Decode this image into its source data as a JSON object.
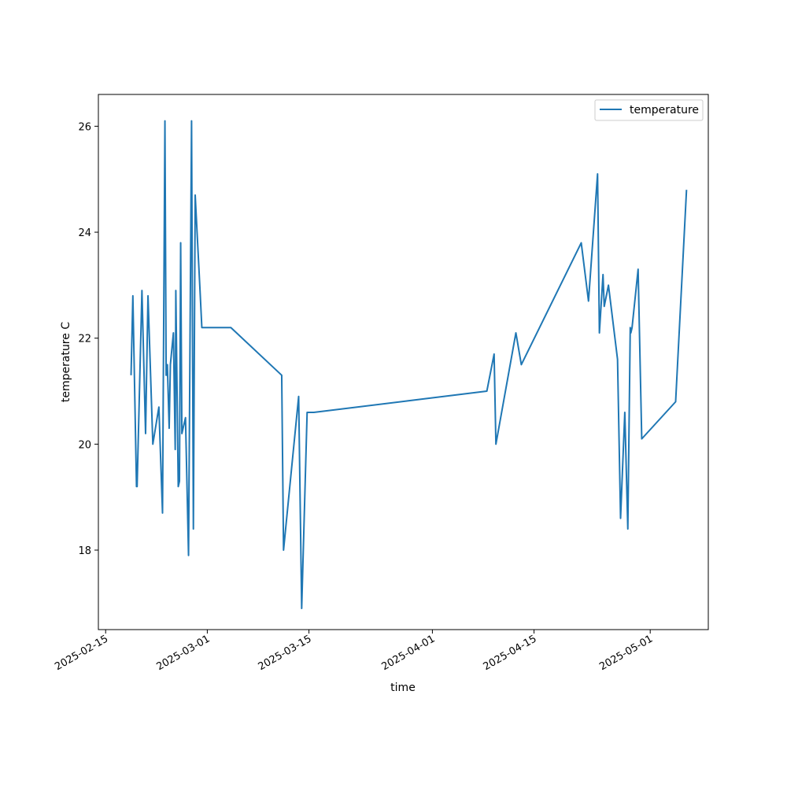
{
  "chart_data": {
    "type": "line",
    "xlabel": "time",
    "ylabel": "temperature C",
    "x_axis_type": "date",
    "xlim": [
      "2025-02-14",
      "2025-05-09"
    ],
    "ylim": [
      16.5,
      26.6
    ],
    "x_ticks": [
      "2025-02-15",
      "2025-03-01",
      "2025-03-15",
      "2025-04-01",
      "2025-04-15",
      "2025-05-01"
    ],
    "y_ticks": [
      18,
      20,
      22,
      24,
      26
    ],
    "grid": false,
    "legend": {
      "placement": "upper-right",
      "entries": [
        "temperature"
      ]
    },
    "series": [
      {
        "name": "temperature",
        "color": "#1f77b4",
        "x": [
          "2025-02-18T12:00",
          "2025-02-18T18:00",
          "2025-02-19T06:00",
          "2025-02-19T08:00",
          "2025-02-20T00:00",
          "2025-02-20T12:00",
          "2025-02-20T20:00",
          "2025-02-21T12:00",
          "2025-02-22T08:00",
          "2025-02-22T20:00",
          "2025-02-23T04:00",
          "2025-02-23T08:00",
          "2025-02-23T12:00",
          "2025-02-23T18:00",
          "2025-02-23T22:00",
          "2025-02-24T08:00",
          "2025-02-24T14:00",
          "2025-02-24T16:00",
          "2025-02-25T00:00",
          "2025-02-25T04:00",
          "2025-02-25T08:00",
          "2025-02-25T12:00",
          "2025-02-26T00:00",
          "2025-02-26T10:00",
          "2025-02-26T20:00",
          "2025-02-27T02:00",
          "2025-02-27T08:00",
          "2025-02-28T00:00",
          "2025-02-28T06:00",
          "2025-03-04T06:00",
          "2025-03-11T06:00",
          "2025-03-11T12:00",
          "2025-03-13T14:00",
          "2025-03-14T00:00",
          "2025-03-14T18:00",
          "2025-03-15T16:00",
          "2025-04-08T12:00",
          "2025-04-09T12:00",
          "2025-04-09T18:00",
          "2025-04-12T12:00",
          "2025-04-13T06:00",
          "2025-04-21T12:00",
          "2025-04-22T12:00",
          "2025-04-23T18:00",
          "2025-04-24T00:00",
          "2025-04-24T12:00",
          "2025-04-24T16:00",
          "2025-04-25T06:00",
          "2025-04-26T12:00",
          "2025-04-26T22:00",
          "2025-04-27T12:00",
          "2025-04-27T22:00",
          "2025-04-28T06:00",
          "2025-04-28T08:00",
          "2025-04-28T12:00",
          "2025-04-29T08:00",
          "2025-04-29T20:00",
          "2025-05-04T12:00",
          "2025-05-06T00:00"
        ],
        "values": [
          21.3,
          22.8,
          19.2,
          19.2,
          22.9,
          20.2,
          22.8,
          20.0,
          20.7,
          18.7,
          26.1,
          21.3,
          21.5,
          20.3,
          21.5,
          22.1,
          19.9,
          22.9,
          19.2,
          19.3,
          23.8,
          20.2,
          20.5,
          17.9,
          26.1,
          18.4,
          24.7,
          22.9,
          22.2,
          22.2,
          21.3,
          18.0,
          20.9,
          16.9,
          20.6,
          20.6,
          21.0,
          21.7,
          20.0,
          22.1,
          21.5,
          23.8,
          22.7,
          25.1,
          22.1,
          23.2,
          22.6,
          23.0,
          21.6,
          18.6,
          20.6,
          18.4,
          22.2,
          22.1,
          22.2,
          23.3,
          20.1,
          20.8,
          24.8
        ]
      }
    ]
  }
}
